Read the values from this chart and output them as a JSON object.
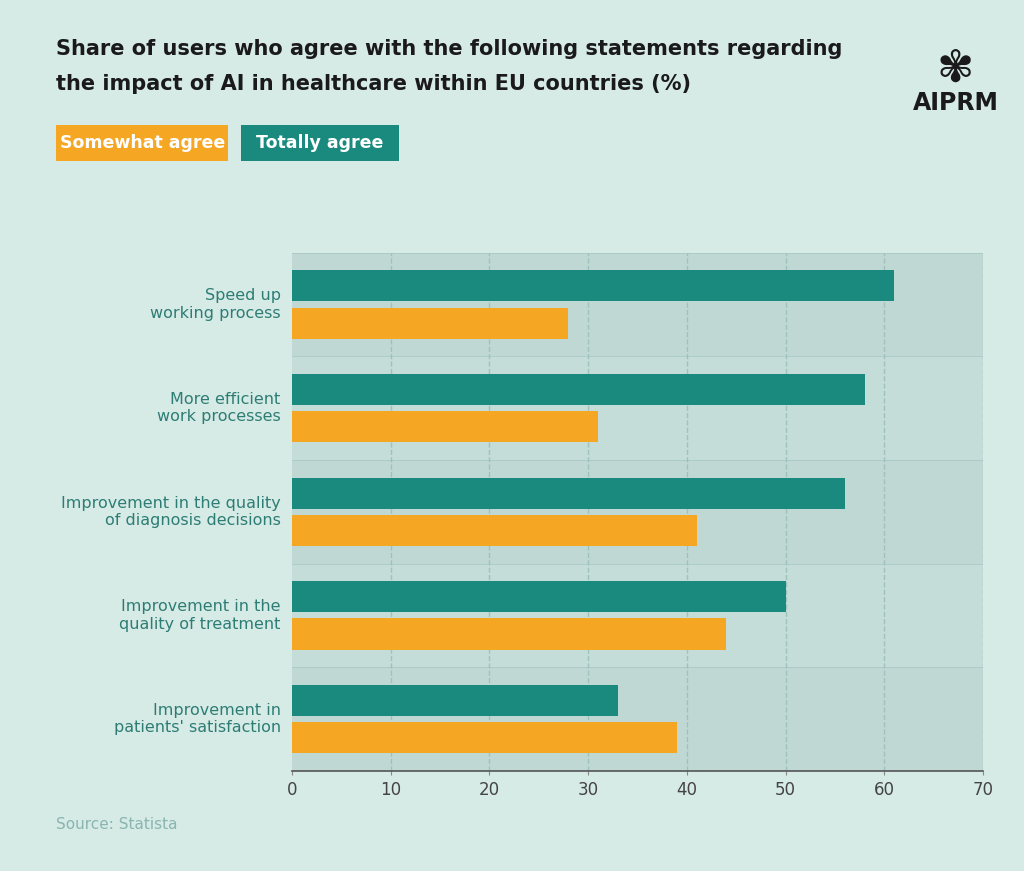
{
  "title_line1": "Share of users who agree with the following statements regarding",
  "title_line2": "the impact of AI in healthcare within EU countries (%)",
  "categories": [
    "Speed up\nworking process",
    "More efficient\nwork processes",
    "Improvement in the quality\nof diagnosis decisions",
    "Improvement in the\nquality of treatment",
    "Improvement in\npatients' satisfaction"
  ],
  "totally_agree": [
    61,
    58,
    56,
    50,
    33
  ],
  "somewhat_agree": [
    28,
    31,
    41,
    44,
    39
  ],
  "totally_agree_color": "#1b8a7e",
  "somewhat_agree_color": "#f5a623",
  "background_color": "#d6eae6",
  "plot_background_color": "#c4ddd8",
  "alt_band_color": "#bdd5d0",
  "grid_color": "#9bbfba",
  "title_color": "#1a1a1a",
  "label_color": "#2d7d74",
  "tick_color": "#2d7d74",
  "source_text": "Source: Statista",
  "source_color": "#8ab5b0",
  "xlim": [
    0,
    70
  ],
  "xticks": [
    0,
    10,
    20,
    30,
    40,
    50,
    60,
    70
  ],
  "legend_somewhat_label": "Somewhat agree",
  "legend_totally_label": "Totally agree",
  "bar_height": 0.3,
  "bar_gap": 0.06
}
